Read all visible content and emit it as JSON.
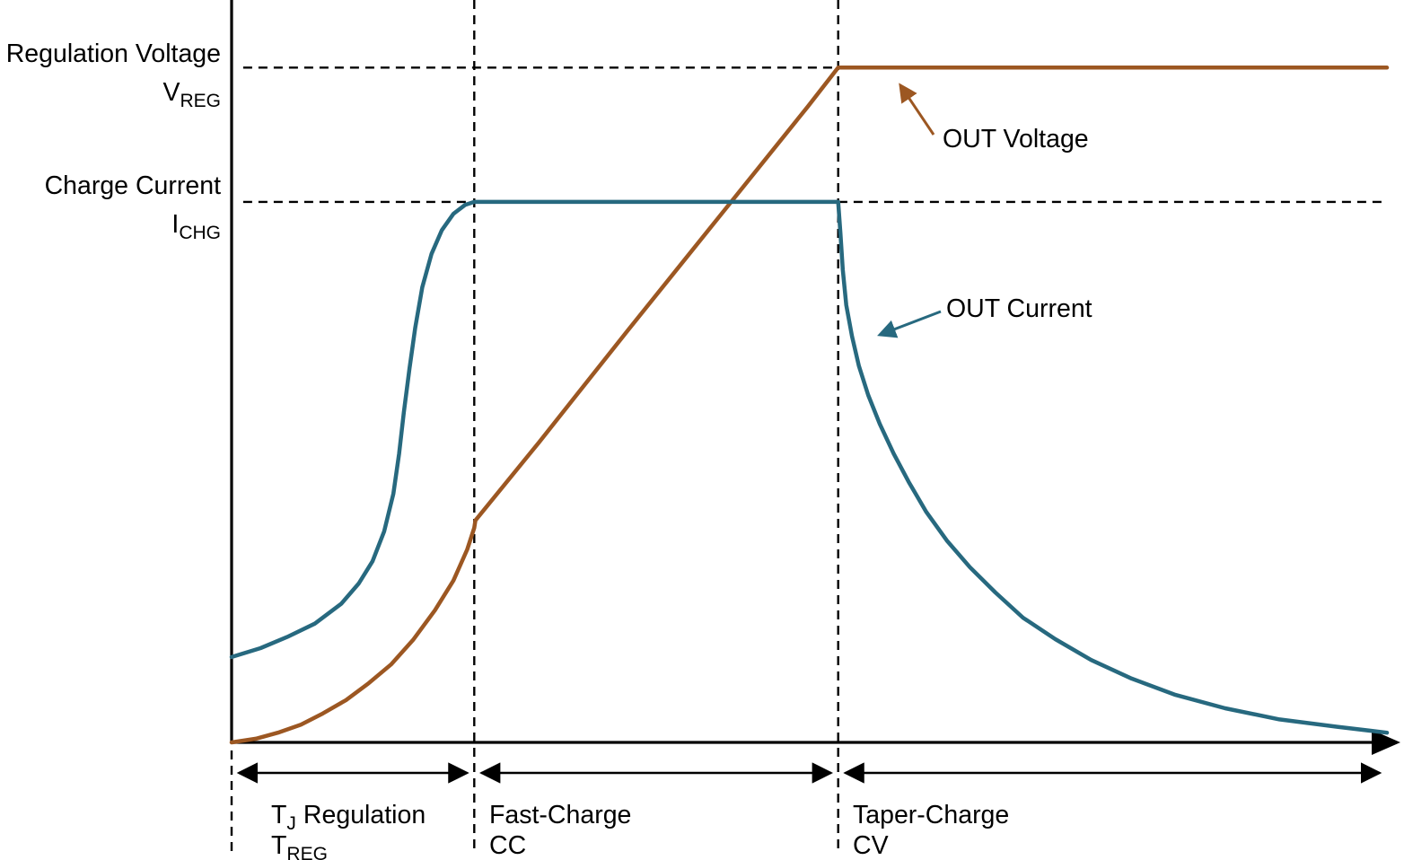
{
  "figure": {
    "y_axis": {
      "regulation_voltage_label": "Regulation Voltage",
      "vreg_symbol": "V",
      "vreg_subscript": "REG",
      "charge_current_label": "Charge Current",
      "ichg_symbol": "I",
      "ichg_subscript": "CHG"
    },
    "annotations": {
      "out_voltage": "OUT Voltage",
      "out_current": "OUT Current"
    },
    "phases": [
      {
        "name_symbol": "T",
        "name_subscript": "J",
        "name_rest": "Regulation",
        "code_symbol": "T",
        "code_subscript": "REG"
      },
      {
        "name": "Fast-Charge",
        "code": "CC"
      },
      {
        "name": "Taper-Charge",
        "code": "CV"
      }
    ]
  },
  "chart_data": {
    "type": "line",
    "axes": {
      "x": {
        "label": "",
        "unit": "percent of time axis",
        "range": [
          0,
          100
        ],
        "ticks_shown": false
      },
      "y": {
        "label": "",
        "unit": "percent of value axis",
        "range": [
          0,
          100
        ],
        "ticks_shown": false
      }
    },
    "reference_levels": [
      {
        "id": "vreg",
        "label": "Regulation Voltage VREG",
        "y": 90.9,
        "x_start": 1,
        "x_end": 52.5,
        "style": "dashed"
      },
      {
        "id": "ichg",
        "label": "Charge Current ICHG",
        "y": 72.8,
        "x_start": 1,
        "x_end": 100,
        "style": "dashed"
      }
    ],
    "phase_boundaries_x": [
      0,
      21,
      52.5
    ],
    "phases": [
      {
        "name": "TJ Regulation (TREG)",
        "x_range": [
          0,
          21
        ]
      },
      {
        "name": "Fast-Charge (CC)",
        "x_range": [
          21,
          52.5
        ]
      },
      {
        "name": "Taper-Charge (CV)",
        "x_range": [
          52.5,
          100
        ]
      }
    ],
    "series": [
      {
        "id": "voltage",
        "name": "OUT Voltage",
        "color": "#9C5722",
        "points": [
          [
            0,
            0
          ],
          [
            2.1,
            0.5
          ],
          [
            4,
            1.3
          ],
          [
            6,
            2.4
          ],
          [
            7.9,
            3.9
          ],
          [
            9.9,
            5.7
          ],
          [
            11.8,
            7.9
          ],
          [
            13.8,
            10.5
          ],
          [
            15.7,
            13.8
          ],
          [
            17.6,
            17.8
          ],
          [
            19.2,
            21.8
          ],
          [
            20.4,
            26
          ],
          [
            21,
            28.9
          ],
          [
            21.1,
            29.9
          ],
          [
            26.6,
            40.4
          ],
          [
            34.3,
            55.5
          ],
          [
            42.1,
            70.6
          ],
          [
            49.9,
            85.7
          ],
          [
            52.5,
            90.9
          ],
          [
            65,
            90.9
          ],
          [
            100,
            90.9
          ]
        ]
      },
      {
        "id": "current",
        "name": "OUT Current",
        "color": "#27697F",
        "points": [
          [
            0,
            11.5
          ],
          [
            2.5,
            12.7
          ],
          [
            4.8,
            14.2
          ],
          [
            7.2,
            16
          ],
          [
            9.5,
            18.7
          ],
          [
            11,
            21.4
          ],
          [
            12.2,
            24.4
          ],
          [
            13.2,
            28.4
          ],
          [
            14,
            33.5
          ],
          [
            14.5,
            38.9
          ],
          [
            14.9,
            44.4
          ],
          [
            15.4,
            50.4
          ],
          [
            15.9,
            55.9
          ],
          [
            16.5,
            61.3
          ],
          [
            17.3,
            65.8
          ],
          [
            18.2,
            69
          ],
          [
            19.2,
            71.2
          ],
          [
            20.2,
            72.4
          ],
          [
            21,
            72.8
          ],
          [
            52.5,
            72.8
          ],
          [
            52.7,
            68.6
          ],
          [
            52.9,
            63.7
          ],
          [
            53.2,
            58.9
          ],
          [
            53.7,
            54.7
          ],
          [
            54.3,
            50.7
          ],
          [
            55.1,
            46.8
          ],
          [
            56.1,
            42.9
          ],
          [
            57.3,
            38.9
          ],
          [
            58.6,
            35.1
          ],
          [
            60.1,
            31.1
          ],
          [
            61.9,
            27.2
          ],
          [
            63.9,
            23.6
          ],
          [
            66.1,
            20.2
          ],
          [
            68.5,
            16.8
          ],
          [
            71.3,
            13.9
          ],
          [
            74.4,
            11.1
          ],
          [
            77.9,
            8.6
          ],
          [
            81.7,
            6.4
          ],
          [
            86,
            4.6
          ],
          [
            90.7,
            3.1
          ],
          [
            95.7,
            2.1
          ],
          [
            100,
            1.3
          ]
        ]
      }
    ]
  }
}
